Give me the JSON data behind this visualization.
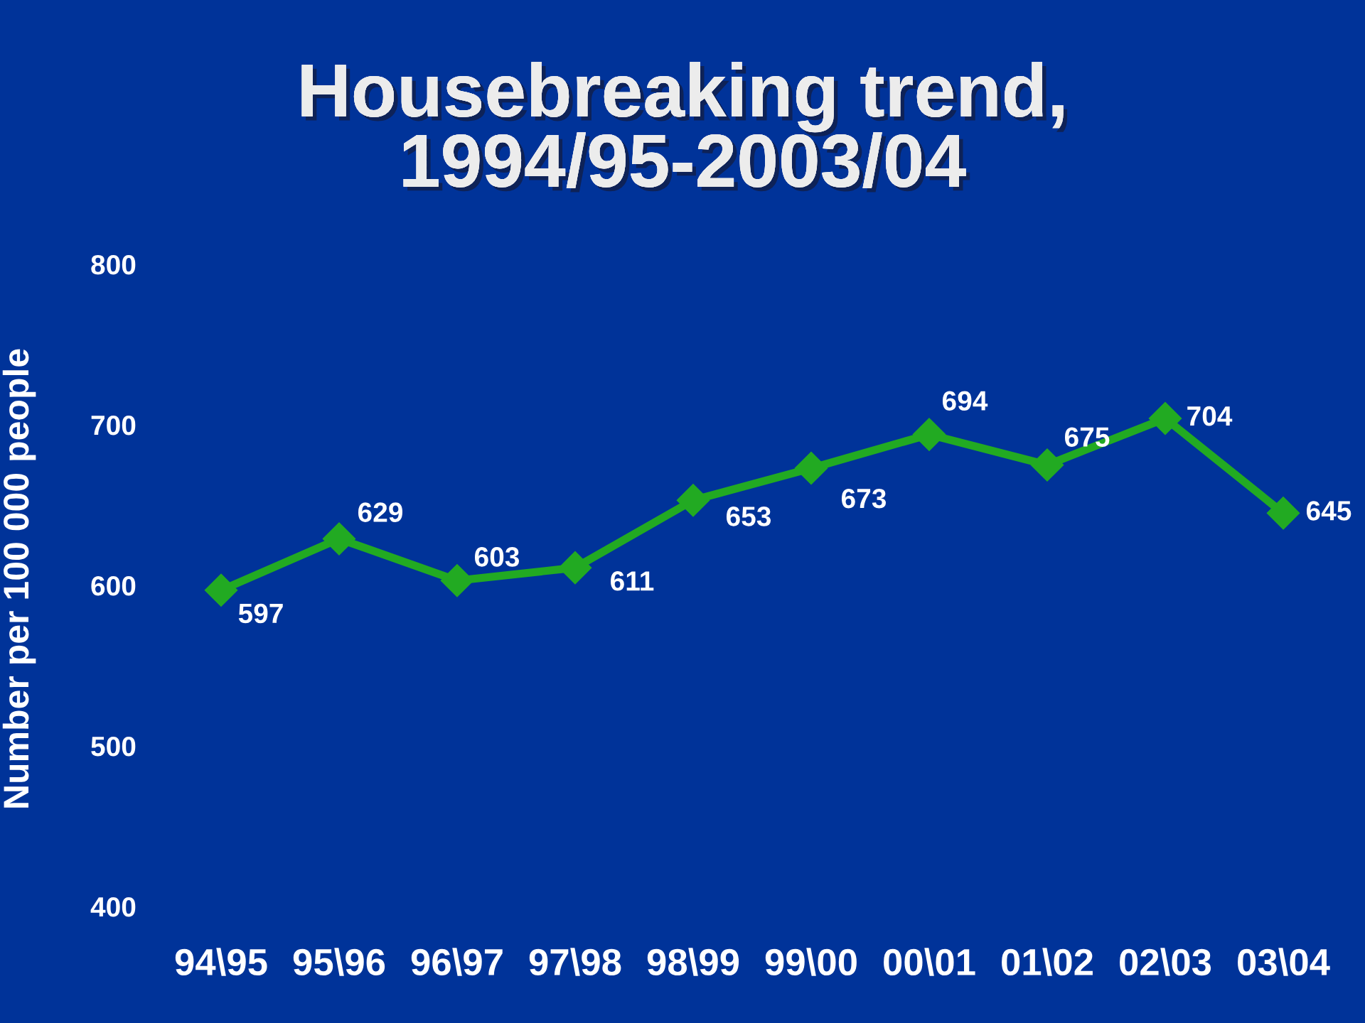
{
  "chart_data": {
    "type": "line",
    "title": "Housebreaking trend,\n1994/95-2003/04",
    "ylabel": "Number per 100 000 people",
    "categories": [
      "94\\95",
      "95\\96",
      "96\\97",
      "97\\98",
      "98\\99",
      "99\\00",
      "00\\01",
      "01\\02",
      "02\\03",
      "03\\04"
    ],
    "series": [
      {
        "color": "#22aa22",
        "values": [
          597,
          629,
          603,
          611,
          653,
          673,
          694,
          675,
          704,
          645
        ]
      }
    ],
    "ylim": [
      400,
      800
    ],
    "yticks": [
      400,
      500,
      600,
      700,
      800
    ],
    "data_labels": true,
    "marker": "diamond",
    "line_style": "solid",
    "grid": false
  }
}
